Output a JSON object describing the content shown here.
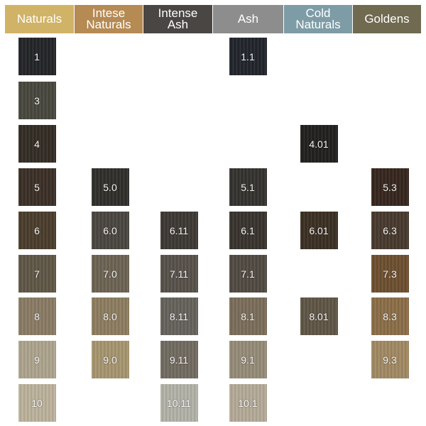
{
  "columns": [
    {
      "label": "Naturals",
      "color": "#d1b367"
    },
    {
      "label": "Intese\nNaturals",
      "color": "#b58a53"
    },
    {
      "label": "Intense\nAsh",
      "color": "#4a4644"
    },
    {
      "label": "Ash",
      "color": "#8d8d8d"
    },
    {
      "label": "Cold\nNaturals",
      "color": "#7e9ca6"
    },
    {
      "label": "Goldens",
      "color": "#6f6a50"
    }
  ],
  "swatches": [
    {
      "label": "1",
      "col": 0,
      "row": 0,
      "color": "#232427"
    },
    {
      "label": "3",
      "col": 0,
      "row": 1,
      "color": "#47473d"
    },
    {
      "label": "4",
      "col": 0,
      "row": 2,
      "color": "#322c24"
    },
    {
      "label": "5",
      "col": 0,
      "row": 3,
      "color": "#3b2f26"
    },
    {
      "label": "6",
      "col": 0,
      "row": 4,
      "color": "#4a3d2c"
    },
    {
      "label": "7",
      "col": 0,
      "row": 5,
      "color": "#5f5646"
    },
    {
      "label": "8",
      "col": 0,
      "row": 6,
      "color": "#8a7b64"
    },
    {
      "label": "9",
      "col": 0,
      "row": 7,
      "color": "#ada48e"
    },
    {
      "label": "10",
      "col": 0,
      "row": 8,
      "color": "#bcb29c"
    },
    {
      "label": "5.0",
      "col": 1,
      "row": 3,
      "color": "#2f2e2a"
    },
    {
      "label": "6.0",
      "col": 1,
      "row": 4,
      "color": "#4a4540"
    },
    {
      "label": "7.0",
      "col": 1,
      "row": 5,
      "color": "#6c6353"
    },
    {
      "label": "8.0",
      "col": 1,
      "row": 6,
      "color": "#8d7d60"
    },
    {
      "label": "9.0",
      "col": 1,
      "row": 7,
      "color": "#a6956f"
    },
    {
      "label": "6.11",
      "col": 2,
      "row": 4,
      "color": "#3d3833"
    },
    {
      "label": "7.11",
      "col": 2,
      "row": 5,
      "color": "#57514a"
    },
    {
      "label": "8.11",
      "col": 2,
      "row": 6,
      "color": "#65625c"
    },
    {
      "label": "9.11",
      "col": 2,
      "row": 7,
      "color": "#716b60"
    },
    {
      "label": "10.11",
      "col": 2,
      "row": 8,
      "color": "#b3b2a8"
    },
    {
      "label": "1.1",
      "col": 3,
      "row": 0,
      "color": "#21252b"
    },
    {
      "label": "5.1",
      "col": 3,
      "row": 3,
      "color": "#34322e"
    },
    {
      "label": "6.1",
      "col": 3,
      "row": 4,
      "color": "#38332d"
    },
    {
      "label": "7.1",
      "col": 3,
      "row": 5,
      "color": "#504a42"
    },
    {
      "label": "8.1",
      "col": 3,
      "row": 6,
      "color": "#7a6d5a"
    },
    {
      "label": "9.1",
      "col": 3,
      "row": 7,
      "color": "#968b78"
    },
    {
      "label": "10.1",
      "col": 3,
      "row": 8,
      "color": "#b4aa98"
    },
    {
      "label": "4.01",
      "col": 4,
      "row": 2,
      "color": "#211f1d"
    },
    {
      "label": "6.01",
      "col": 4,
      "row": 4,
      "color": "#3b2f22"
    },
    {
      "label": "8.01",
      "col": 4,
      "row": 6,
      "color": "#5e5545"
    },
    {
      "label": "5.3",
      "col": 5,
      "row": 3,
      "color": "#35261d"
    },
    {
      "label": "6.3",
      "col": 5,
      "row": 4,
      "color": "#47392c"
    },
    {
      "label": "7.3",
      "col": 5,
      "row": 5,
      "color": "#6d4f2f"
    },
    {
      "label": "8.3",
      "col": 5,
      "row": 6,
      "color": "#8b6e48"
    },
    {
      "label": "9.3",
      "col": 5,
      "row": 7,
      "color": "#a18963"
    }
  ]
}
